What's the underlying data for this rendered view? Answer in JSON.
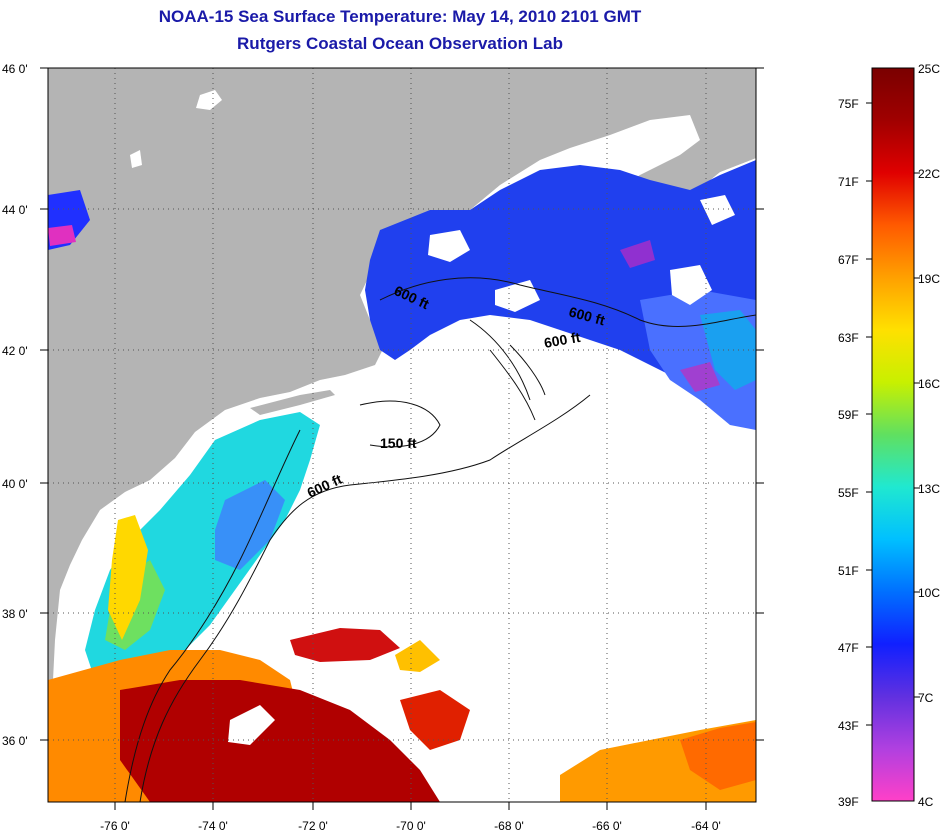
{
  "header": {
    "title_line1": "NOAA-15 Sea Surface Temperature:  May 14, 2010 2101 GMT",
    "title_line2": "Rutgers Coastal Ocean Observation Lab"
  },
  "map": {
    "lat_labels": [
      "46 0'",
      "44 0'",
      "42 0'",
      "40 0'",
      "38 0'",
      "36 0'"
    ],
    "lon_labels": [
      "-76 0'",
      "-74 0'",
      "-72 0'",
      "-70 0'",
      "-68 0'",
      "-66 0'",
      "-64 0'"
    ],
    "contour_labels": [
      "600 ft",
      "600 ft",
      "600 ft",
      "150 ft",
      "600 ft"
    ],
    "colors": {
      "land": "#b4b4b4",
      "cloud": "#ffffff",
      "grid": "#555555"
    }
  },
  "colorbar": {
    "fahrenheit_labels": [
      "75F",
      "71F",
      "67F",
      "63F",
      "59F",
      "55F",
      "51F",
      "47F",
      "43F",
      "39F"
    ],
    "celsius_labels": [
      "25C",
      "22C",
      "19C",
      "16C",
      "13C",
      "10C",
      "7C",
      "4C"
    ],
    "stops": [
      "#ff40c8",
      "#b040e0",
      "#6030e0",
      "#1020ff",
      "#0070ff",
      "#00c0ff",
      "#20e8d0",
      "#60e060",
      "#c8f000",
      "#ffe000",
      "#ffa000",
      "#ff5a00",
      "#e00000",
      "#a00000",
      "#7a0000"
    ]
  }
}
